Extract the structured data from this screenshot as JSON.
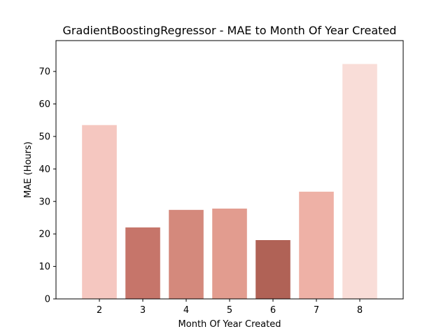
{
  "chart_data": {
    "type": "bar",
    "title": "GradientBoostingRegressor - MAE to Month Of Year Created",
    "xlabel": "Month Of Year Created",
    "ylabel": "MAE (Hours)",
    "categories": [
      "2",
      "3",
      "4",
      "5",
      "6",
      "7",
      "8"
    ],
    "values": [
      53.5,
      22.0,
      27.4,
      27.8,
      18.1,
      33.0,
      72.3
    ],
    "colors": [
      "#f5c7c0",
      "#c6756a",
      "#d4897c",
      "#e29c8f",
      "#b06256",
      "#eeb1a6",
      "#f9ddd8"
    ],
    "ylim": [
      0,
      79.5
    ],
    "yticks": [
      0,
      10,
      20,
      30,
      40,
      50,
      60,
      70
    ],
    "grid": false,
    "legend": "none"
  }
}
